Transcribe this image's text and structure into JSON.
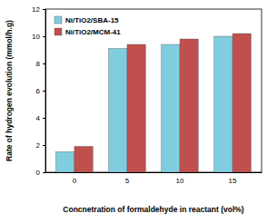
{
  "chart_data": {
    "type": "bar",
    "x_label": "Concnetration of formaldehyde in reactant (vol%)",
    "y_label": "Rate of hydrogen evolution (mmol/h.g)",
    "categories": [
      "0",
      "5",
      "10",
      "15"
    ],
    "series": [
      {
        "name": "Ni/TiO2/SBA-15",
        "color": "#80cde0",
        "values": [
          1.5,
          9.1,
          9.4,
          10.0
        ]
      },
      {
        "name": "Ni/TiO2/MCM-41",
        "color": "#c0504d",
        "values": [
          1.9,
          9.4,
          9.8,
          10.2
        ]
      }
    ],
    "ylim": [
      0,
      12
    ],
    "yticks": [
      0,
      2,
      4,
      6,
      8,
      10,
      12
    ],
    "grid": false,
    "legend": "upper left"
  }
}
